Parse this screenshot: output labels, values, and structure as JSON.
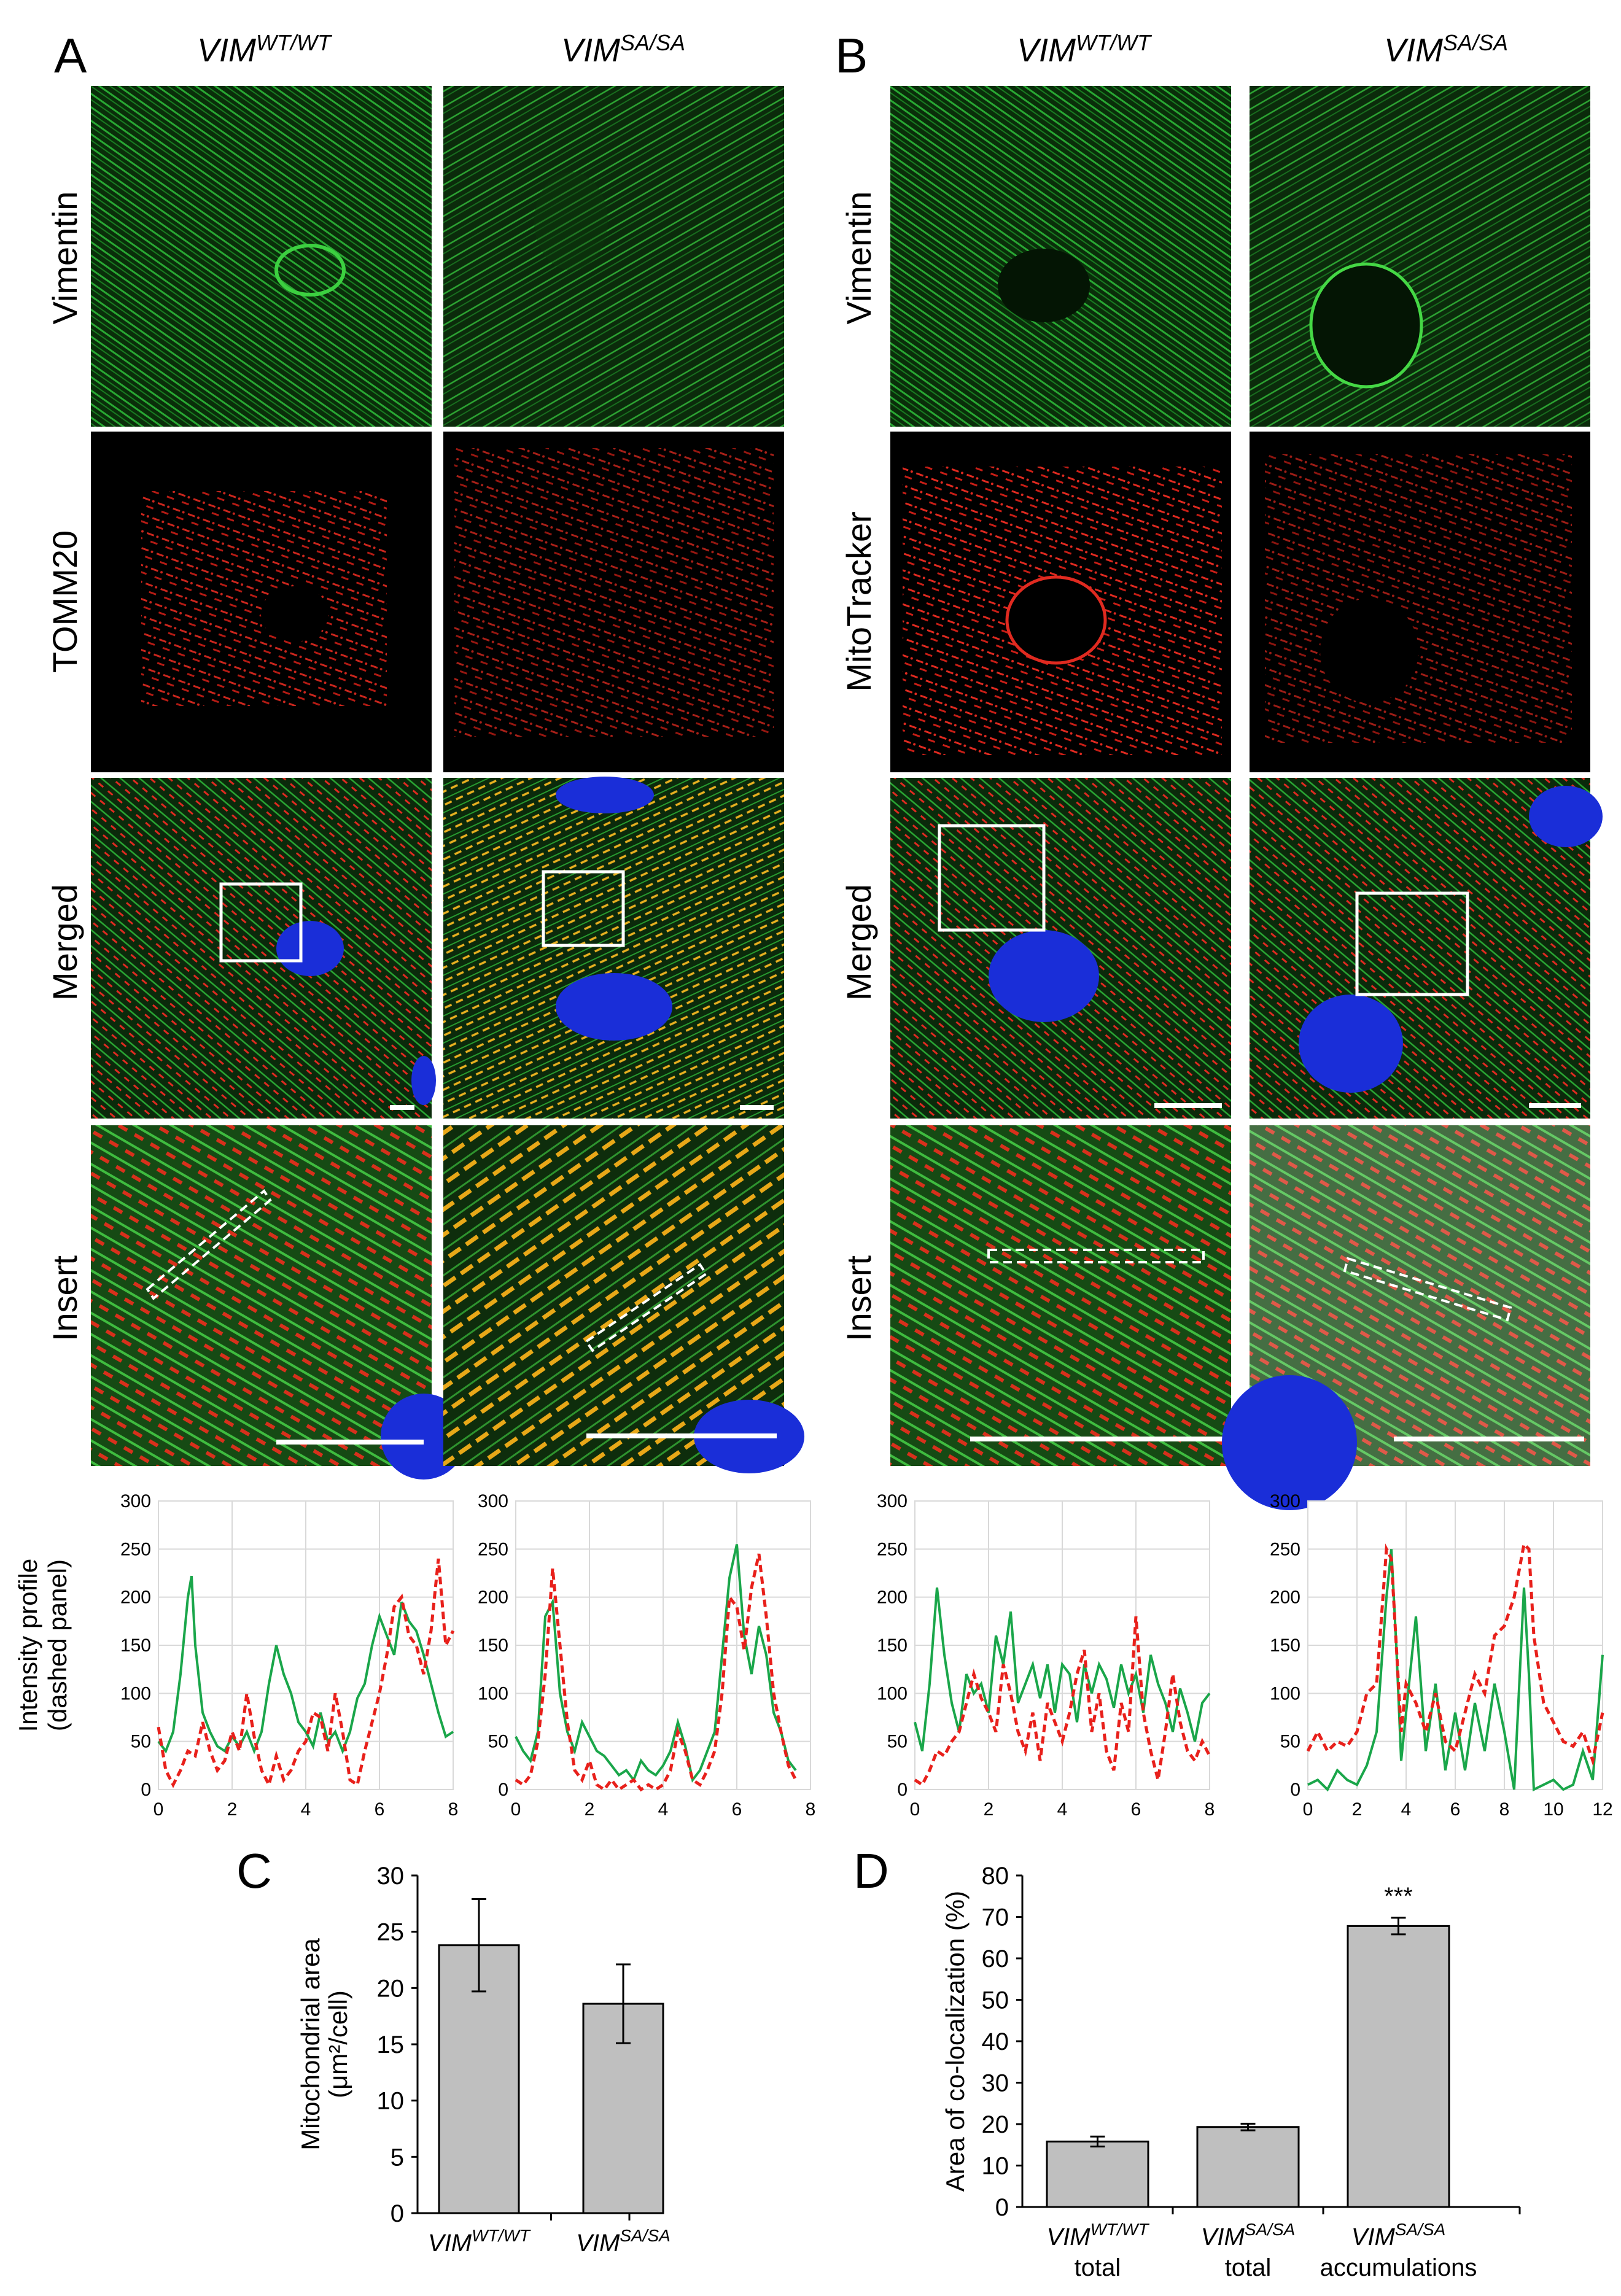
{
  "panels": {
    "A": {
      "letter": "A",
      "columns": [
        {
          "base": "VIM",
          "sup": "WT/WT"
        },
        {
          "base": "VIM",
          "sup": "SA/SA"
        }
      ],
      "row_labels": [
        "Vimentin",
        "TOMM20",
        "Merged",
        "Insert"
      ]
    },
    "B": {
      "letter": "B",
      "columns": [
        {
          "base": "VIM",
          "sup": "WT/WT"
        },
        {
          "base": "VIM",
          "sup": "SA/SA"
        }
      ],
      "row_labels": [
        "Vimentin",
        "MitoTracker",
        "Merged",
        "Insert"
      ]
    },
    "C": {
      "letter": "C"
    },
    "D": {
      "letter": "D",
      "significance": "***"
    }
  },
  "intensity_ylabel_line1": "Intensity profile",
  "intensity_ylabel_line2": "(dashed panel)",
  "colors": {
    "green": "#1aa64a",
    "red": "#e8201b",
    "bar": "#bfbfbf",
    "grid": "#d9d9d9"
  },
  "chart_data": [
    {
      "type": "line",
      "panel": "A-WT",
      "ylim": [
        0,
        300
      ],
      "yticks": [
        0,
        50,
        100,
        150,
        200,
        250,
        300
      ],
      "xlim": [
        0,
        8
      ],
      "xticks": [
        0,
        2,
        4,
        6,
        8
      ],
      "series": [
        {
          "color": "green",
          "style": "solid",
          "x": [
            0,
            0.2,
            0.4,
            0.6,
            0.8,
            0.9,
            1.0,
            1.2,
            1.4,
            1.6,
            1.8,
            2.0,
            2.2,
            2.4,
            2.6,
            2.8,
            3.0,
            3.2,
            3.4,
            3.6,
            3.8,
            4.0,
            4.2,
            4.4,
            4.6,
            4.8,
            5.0,
            5.2,
            5.4,
            5.6,
            5.8,
            6.0,
            6.2,
            6.4,
            6.6,
            6.8,
            7.0,
            7.2,
            7.4,
            7.6,
            7.8,
            8.0
          ],
          "y": [
            50,
            40,
            60,
            120,
            200,
            222,
            150,
            80,
            60,
            45,
            40,
            55,
            45,
            60,
            40,
            60,
            110,
            150,
            120,
            100,
            70,
            60,
            45,
            80,
            50,
            60,
            40,
            60,
            95,
            110,
            150,
            180,
            160,
            140,
            195,
            175,
            165,
            140,
            110,
            80,
            55,
            60
          ]
        },
        {
          "color": "red",
          "style": "dashed",
          "x": [
            0,
            0.2,
            0.4,
            0.6,
            0.8,
            1.0,
            1.2,
            1.4,
            1.6,
            1.8,
            2.0,
            2.2,
            2.4,
            2.6,
            2.8,
            3.0,
            3.2,
            3.4,
            3.6,
            3.8,
            4.0,
            4.2,
            4.4,
            4.6,
            4.8,
            5.0,
            5.2,
            5.4,
            5.6,
            5.8,
            6.0,
            6.2,
            6.4,
            6.6,
            6.8,
            7.0,
            7.2,
            7.4,
            7.6,
            7.8,
            8.0
          ],
          "y": [
            65,
            20,
            5,
            20,
            40,
            35,
            70,
            40,
            20,
            30,
            60,
            40,
            100,
            55,
            20,
            5,
            35,
            10,
            20,
            40,
            50,
            80,
            75,
            40,
            100,
            60,
            10,
            5,
            40,
            70,
            100,
            140,
            190,
            200,
            160,
            150,
            120,
            165,
            240,
            150,
            165
          ]
        }
      ]
    },
    {
      "type": "line",
      "panel": "A-SA",
      "ylim": [
        0,
        300
      ],
      "yticks": [
        0,
        50,
        100,
        150,
        200,
        250,
        300
      ],
      "xlim": [
        0,
        8
      ],
      "xticks": [
        0,
        2,
        4,
        6,
        8
      ],
      "series": [
        {
          "color": "green",
          "style": "solid",
          "x": [
            0,
            0.2,
            0.4,
            0.6,
            0.8,
            1.0,
            1.2,
            1.4,
            1.6,
            1.8,
            2.0,
            2.2,
            2.4,
            2.6,
            2.8,
            3.0,
            3.2,
            3.4,
            3.6,
            3.8,
            4.0,
            4.2,
            4.4,
            4.6,
            4.8,
            5.0,
            5.2,
            5.4,
            5.6,
            5.8,
            6.0,
            6.2,
            6.4,
            6.6,
            6.8,
            7.0,
            7.2,
            7.4,
            7.6
          ],
          "y": [
            55,
            40,
            30,
            60,
            180,
            195,
            100,
            60,
            40,
            70,
            55,
            40,
            35,
            25,
            15,
            20,
            10,
            30,
            20,
            15,
            25,
            40,
            70,
            45,
            10,
            20,
            40,
            60,
            140,
            220,
            255,
            160,
            120,
            170,
            140,
            80,
            60,
            30,
            20
          ]
        },
        {
          "color": "red",
          "style": "dashed",
          "x": [
            0,
            0.2,
            0.4,
            0.6,
            0.8,
            1.0,
            1.2,
            1.4,
            1.6,
            1.8,
            2.0,
            2.2,
            2.4,
            2.6,
            2.8,
            3.0,
            3.2,
            3.4,
            3.6,
            3.8,
            4.0,
            4.2,
            4.4,
            4.6,
            4.8,
            5.0,
            5.2,
            5.4,
            5.6,
            5.8,
            6.0,
            6.2,
            6.4,
            6.6,
            6.8,
            7.0,
            7.2,
            7.4,
            7.6
          ],
          "y": [
            10,
            5,
            15,
            50,
            120,
            230,
            150,
            70,
            20,
            10,
            30,
            5,
            0,
            10,
            0,
            5,
            10,
            0,
            5,
            0,
            5,
            20,
            60,
            40,
            10,
            5,
            20,
            40,
            100,
            200,
            190,
            145,
            210,
            245,
            180,
            100,
            60,
            25,
            10
          ]
        }
      ]
    },
    {
      "type": "line",
      "panel": "B-WT",
      "ylim": [
        0,
        300
      ],
      "yticks": [
        0,
        50,
        100,
        150,
        200,
        250,
        300
      ],
      "xlim": [
        0,
        8
      ],
      "xticks": [
        0,
        2,
        4,
        6,
        8
      ],
      "series": [
        {
          "color": "green",
          "style": "solid",
          "x": [
            0,
            0.2,
            0.4,
            0.6,
            0.8,
            1.0,
            1.2,
            1.4,
            1.6,
            1.8,
            2.0,
            2.2,
            2.4,
            2.6,
            2.8,
            3.0,
            3.2,
            3.4,
            3.6,
            3.8,
            4.0,
            4.2,
            4.4,
            4.6,
            4.8,
            5.0,
            5.2,
            5.4,
            5.6,
            5.8,
            6.0,
            6.2,
            6.4,
            6.6,
            6.8,
            7.0,
            7.2,
            7.4,
            7.6,
            7.8,
            8.0
          ],
          "y": [
            70,
            40,
            110,
            210,
            140,
            90,
            60,
            120,
            100,
            110,
            80,
            160,
            130,
            185,
            90,
            110,
            130,
            95,
            130,
            80,
            130,
            120,
            70,
            130,
            100,
            130,
            115,
            85,
            130,
            100,
            120,
            80,
            140,
            110,
            90,
            60,
            105,
            80,
            50,
            90,
            100
          ]
        },
        {
          "color": "red",
          "style": "dashed",
          "x": [
            0,
            0.2,
            0.4,
            0.6,
            0.8,
            1.0,
            1.2,
            1.4,
            1.6,
            1.8,
            2.0,
            2.2,
            2.4,
            2.6,
            2.8,
            3.0,
            3.2,
            3.4,
            3.6,
            3.8,
            4.0,
            4.2,
            4.4,
            4.6,
            4.8,
            5.0,
            5.2,
            5.4,
            5.6,
            5.8,
            6.0,
            6.2,
            6.4,
            6.6,
            6.8,
            7.0,
            7.2,
            7.4,
            7.6,
            7.8,
            8.0
          ],
          "y": [
            10,
            5,
            20,
            40,
            35,
            50,
            60,
            90,
            120,
            95,
            80,
            60,
            130,
            100,
            60,
            40,
            80,
            30,
            90,
            70,
            50,
            80,
            120,
            145,
            60,
            100,
            40,
            20,
            90,
            60,
            180,
            80,
            40,
            10,
            60,
            120,
            70,
            40,
            30,
            50,
            35
          ]
        }
      ]
    },
    {
      "type": "line",
      "panel": "B-SA",
      "ylim": [
        0,
        300
      ],
      "yticks": [
        0,
        50,
        100,
        150,
        200,
        250,
        300
      ],
      "xlim": [
        0,
        12
      ],
      "xticks": [
        0,
        2,
        4,
        6,
        8,
        10,
        12
      ],
      "series": [
        {
          "color": "green",
          "style": "solid",
          "x": [
            0,
            0.4,
            0.8,
            1.2,
            1.6,
            2.0,
            2.4,
            2.8,
            3.2,
            3.4,
            3.6,
            3.8,
            4.0,
            4.4,
            4.8,
            5.2,
            5.6,
            6.0,
            6.4,
            6.8,
            7.2,
            7.6,
            8.0,
            8.4,
            8.8,
            9.0,
            9.2,
            9.6,
            10.0,
            10.4,
            10.8,
            11.2,
            11.6,
            12.0
          ],
          "y": [
            5,
            10,
            0,
            20,
            10,
            5,
            25,
            60,
            200,
            250,
            150,
            30,
            80,
            180,
            40,
            110,
            20,
            80,
            20,
            90,
            40,
            110,
            60,
            0,
            210,
            120,
            0,
            5,
            10,
            0,
            5,
            40,
            10,
            140
          ]
        },
        {
          "color": "red",
          "style": "dashed",
          "x": [
            0,
            0.4,
            0.8,
            1.2,
            1.6,
            2.0,
            2.4,
            2.8,
            3.2,
            3.4,
            3.6,
            3.8,
            4.0,
            4.4,
            4.8,
            5.2,
            5.6,
            6.0,
            6.4,
            6.8,
            7.2,
            7.6,
            8.0,
            8.4,
            8.8,
            9.0,
            9.2,
            9.6,
            10.0,
            10.4,
            10.8,
            11.2,
            11.6,
            12.0
          ],
          "y": [
            40,
            60,
            40,
            50,
            45,
            60,
            100,
            110,
            250,
            240,
            150,
            60,
            110,
            90,
            60,
            100,
            50,
            40,
            80,
            120,
            100,
            160,
            170,
            200,
            255,
            250,
            160,
            90,
            70,
            50,
            45,
            60,
            30,
            80
          ]
        }
      ]
    },
    {
      "type": "bar",
      "panel": "C",
      "ylabel": "Mitochondrial area",
      "ylabel_line2": "(μm²/cell)",
      "ylim": [
        0,
        30
      ],
      "yticks": [
        0,
        5,
        10,
        15,
        20,
        25,
        30
      ],
      "categories": [
        {
          "base": "VIM",
          "sup": "WT/WT",
          "line2": ""
        },
        {
          "base": "VIM",
          "sup": "SA/SA",
          "line2": ""
        }
      ],
      "values": [
        23.8,
        18.6
      ],
      "errors": [
        4.1,
        3.5
      ]
    },
    {
      "type": "bar",
      "panel": "D",
      "ylabel": "Area of co-localization (%)",
      "ylim": [
        0,
        80
      ],
      "yticks": [
        0,
        10,
        20,
        30,
        40,
        50,
        60,
        70,
        80
      ],
      "categories": [
        {
          "base": "VIM",
          "sup": "WT/WT",
          "line2": "total"
        },
        {
          "base": "VIM",
          "sup": "SA/SA",
          "line2": "total"
        },
        {
          "base": "VIM",
          "sup": "SA/SA",
          "line2": "accumulations"
        }
      ],
      "values": [
        15.8,
        19.3,
        67.8
      ],
      "errors": [
        1.2,
        0.8,
        2.0
      ]
    }
  ]
}
